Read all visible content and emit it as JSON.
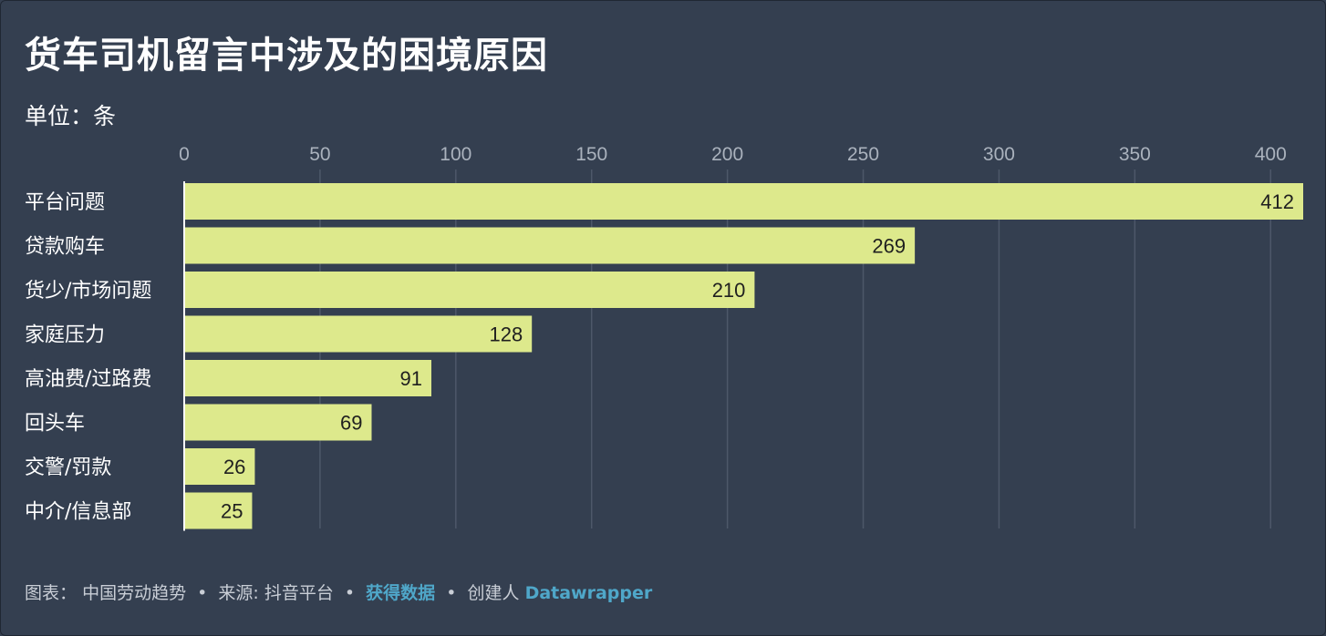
{
  "title": "货车司机留言中涉及的困境原因",
  "subtitle": "单位：条",
  "footer": {
    "chart_prefix": "图表：",
    "chart_author": "中国劳动趋势",
    "source_prefix": "来源:",
    "source_name": "抖音平台",
    "get_data": "获得数据",
    "created_prefix": "创建人",
    "tool": "Datawrapper"
  },
  "colors": {
    "background": "#343f50",
    "bar": "#dde98c",
    "grid": "#4d5869",
    "tick": "#aab2bd",
    "link": "#4fa7c9"
  },
  "chart_data": {
    "type": "bar",
    "orientation": "horizontal",
    "categories": [
      "平台问题",
      "贷款购车",
      "货少/市场问题",
      "家庭压力",
      "高油费/过路费",
      "回头车",
      "交警/罚款",
      "中介/信息部"
    ],
    "values": [
      412,
      269,
      210,
      128,
      91,
      69,
      26,
      25
    ],
    "title": "货车司机留言中涉及的困境原因",
    "subtitle": "单位：条",
    "xlim": [
      0,
      412
    ],
    "xticks": [
      0,
      50,
      100,
      150,
      200,
      250,
      300,
      350,
      400
    ],
    "xtick_labels": [
      "0",
      "50",
      "100",
      "150",
      "200",
      "250",
      "300",
      "350",
      "400"
    ],
    "grid": true,
    "axis_position": "top"
  }
}
